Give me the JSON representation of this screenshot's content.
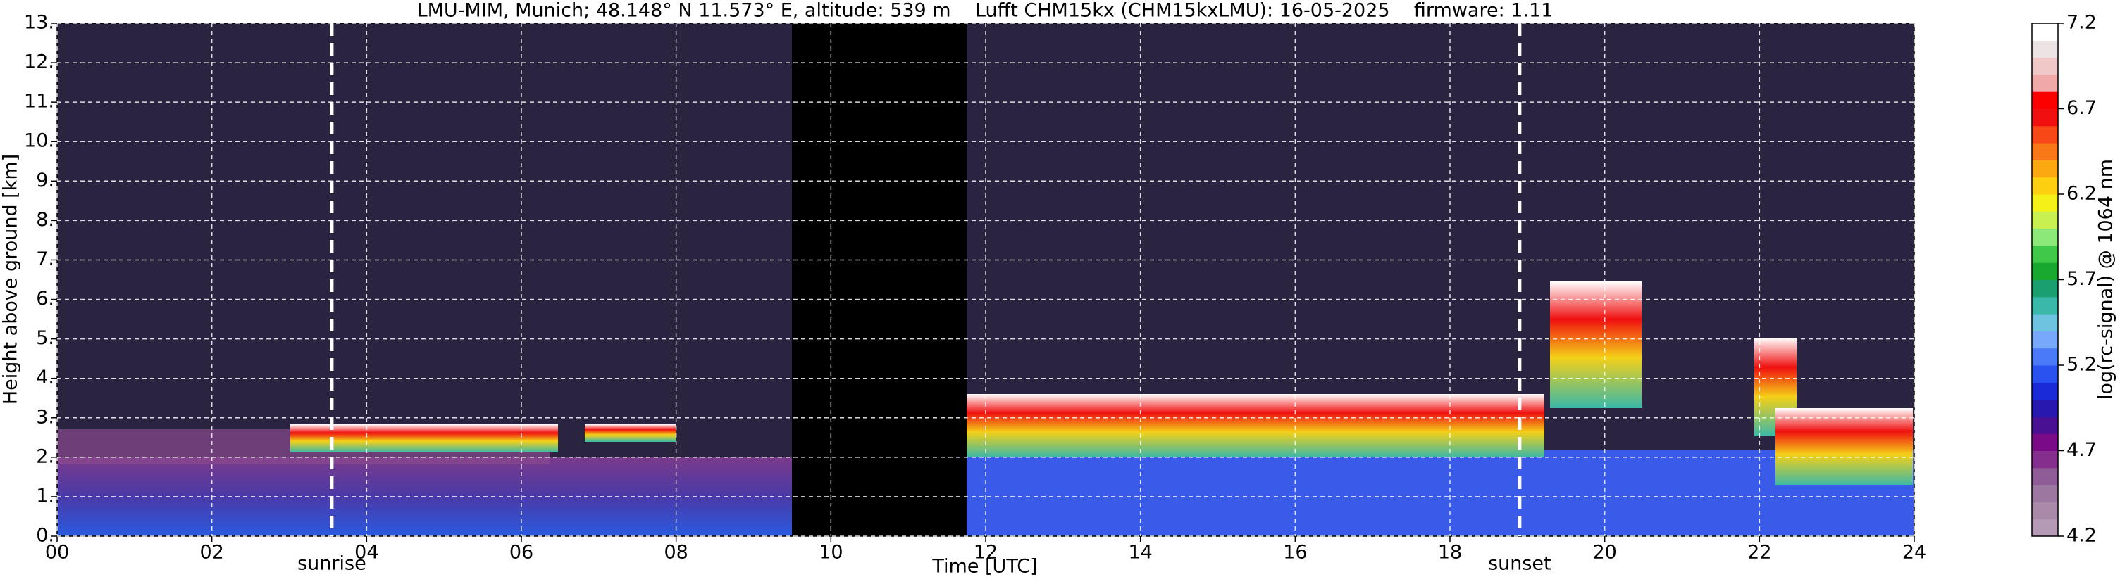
{
  "chart_data": {
    "type": "heatmap",
    "title": "LMU-MIM, Munich; 48.148° N 11.573° E, altitude: 539 m    Lufft CHM15kx (CHM15kxLMU): 16-05-2025    firmware: 1.11",
    "x_label": "Time [UTC]",
    "y_label": "Height above ground [km]",
    "xlim": [
      0,
      24
    ],
    "xticks": [
      {
        "value": 0,
        "label": "00"
      },
      {
        "value": 2,
        "label": "02"
      },
      {
        "value": 4,
        "label": "04"
      },
      {
        "value": 6,
        "label": "06"
      },
      {
        "value": 8,
        "label": "08"
      },
      {
        "value": 10,
        "label": "10"
      },
      {
        "value": 12,
        "label": "12"
      },
      {
        "value": 14,
        "label": "14"
      },
      {
        "value": 16,
        "label": "16"
      },
      {
        "value": 18,
        "label": "18"
      },
      {
        "value": 20,
        "label": "20"
      },
      {
        "value": 22,
        "label": "22"
      },
      {
        "value": 24,
        "label": "24"
      }
    ],
    "ylim": [
      0,
      13
    ],
    "yticks": [
      {
        "value": 0,
        "label": "0."
      },
      {
        "value": 1,
        "label": "1."
      },
      {
        "value": 2,
        "label": "2."
      },
      {
        "value": 3,
        "label": "3."
      },
      {
        "value": 4,
        "label": "4."
      },
      {
        "value": 5,
        "label": "5."
      },
      {
        "value": 6,
        "label": "6."
      },
      {
        "value": 7,
        "label": "7."
      },
      {
        "value": 8,
        "label": "8."
      },
      {
        "value": 9,
        "label": "9."
      },
      {
        "value": 10,
        "label": "10."
      },
      {
        "value": 11,
        "label": "11."
      },
      {
        "value": 12,
        "label": "12."
      },
      {
        "value": 13,
        "label": "13."
      }
    ],
    "grid": true,
    "annotations": [
      {
        "label": "sunrise",
        "x": 3.55
      },
      {
        "label": "sunset",
        "x": 18.9
      }
    ],
    "colorbar": {
      "label": "log(rc-signal) @ 1064 nm",
      "lim": [
        4.2,
        7.2
      ],
      "ticks": [
        4.2,
        4.7,
        5.2,
        5.7,
        6.2,
        6.7,
        7.2
      ],
      "colors": [
        "#b49ab4",
        "#a88aa8",
        "#9c78a0",
        "#905c98",
        "#862e8e",
        "#7a0a88",
        "#4a1094",
        "#2818b0",
        "#1a2ad8",
        "#2a52f0",
        "#4a7af8",
        "#78a8fc",
        "#6ec4e0",
        "#3ab8a8",
        "#1aa070",
        "#18a830",
        "#40c848",
        "#8ce878",
        "#c8f050",
        "#f4f018",
        "#fcd010",
        "#fca810",
        "#f87818",
        "#f84818",
        "#f01010",
        "#fc0000",
        "#f0a8a8",
        "#f0c8c8",
        "#ece4e4",
        "#ffffff"
      ]
    }
  }
}
